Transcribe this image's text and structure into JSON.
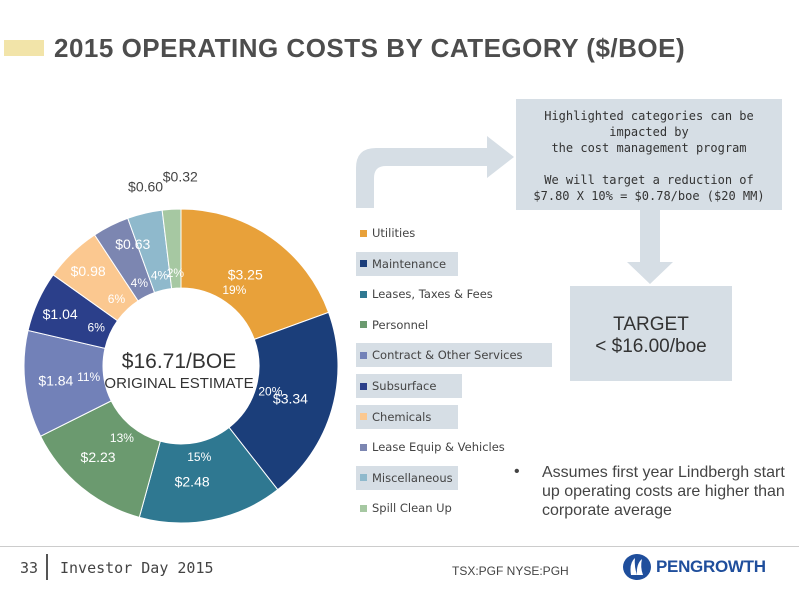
{
  "title": "2015 OPERATING COSTS BY CATEGORY ($/BOE)",
  "center": {
    "main": "$16.71/BOE",
    "sub": "ORIGINAL ESTIMATE"
  },
  "callout": {
    "lines": [
      "Highlighted categories can be",
      "impacted by",
      "the cost management program",
      "",
      "We will target a reduction of",
      "$7.80 X 10% = $0.78/boe ($20 MM)"
    ]
  },
  "target": {
    "line1": "TARGET",
    "line2": "< $16.00/boe"
  },
  "bullet": {
    "marker": "•",
    "text": "Assumes first year Lindbergh start up operating costs are higher than corporate average"
  },
  "footer": {
    "page": "33",
    "event": "Investor Day 2015",
    "tickers": "TSX:PGF   NYSE:PGH",
    "logo": "PENGROWTH"
  },
  "colors": {
    "accent_bar": "#f2e4a9",
    "highlight": "#d6dee5",
    "logo": "#1f4e9c"
  },
  "chart_data": {
    "type": "pie",
    "donut": true,
    "title": "2015 OPERATING COSTS BY CATEGORY ($/BOE)",
    "total_label": "$16.71/BOE",
    "categories": [
      "Utilities",
      "Maintenance",
      "Leases, Taxes & Fees",
      "Personnel",
      "Contract & Other Services",
      "Subsurface",
      "Chemicals",
      "Lease Equip & Vehicles",
      "Miscellaneous",
      "Spill Clean Up"
    ],
    "values": [
      3.25,
      3.34,
      2.48,
      2.23,
      1.84,
      1.04,
      0.98,
      0.63,
      0.6,
      0.32
    ],
    "value_labels": [
      "$3.25",
      "$3.34",
      "$2.48",
      "$2.23",
      "$1.84",
      "$1.04",
      "$0.98",
      "$0.63",
      "$0.60",
      "$0.32"
    ],
    "percent_labels": [
      "19%",
      "20%",
      "15%",
      "13%",
      "11%",
      "6%",
      "6%",
      "4%",
      "4%",
      "2%"
    ],
    "highlighted": [
      false,
      true,
      false,
      false,
      true,
      true,
      true,
      false,
      true,
      false
    ],
    "colors": [
      "#e8a13a",
      "#1b3e7a",
      "#2f7891",
      "#6b9a6f",
      "#7281b8",
      "#2b3f8a",
      "#fbc890",
      "#7c86b1",
      "#8fb9cc",
      "#a6c8a2"
    ],
    "legend_position": "right"
  }
}
